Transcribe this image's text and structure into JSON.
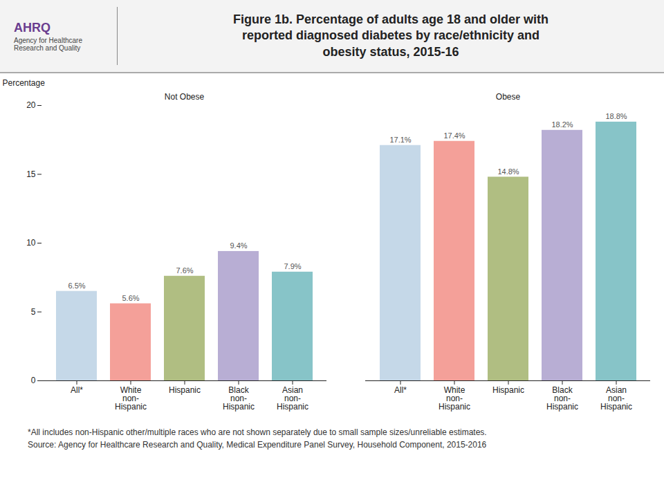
{
  "chart_data": {
    "type": "bar",
    "title": "Figure 1b. Percentage of adults age 18 and older with\nreported diagnosed diabetes by race/ethnicity and\nobesity status, 2015-16",
    "ylabel": "Percentage",
    "categories": [
      "All*",
      "White\nnon-\nHispanic",
      "Hispanic",
      "Black\nnon-\nHispanic",
      "Asian\nnon-\nHispanic"
    ],
    "groups": [
      {
        "name": "Not Obese",
        "values": [
          6.5,
          5.6,
          7.6,
          9.4,
          7.9
        ],
        "value_labels": [
          "6.5%",
          "5.6%",
          "7.6%",
          "9.4%",
          "7.9%"
        ]
      },
      {
        "name": "Obese",
        "values": [
          17.1,
          17.4,
          14.8,
          18.2,
          18.8
        ],
        "value_labels": [
          "17.1%",
          "17.4%",
          "14.8%",
          "18.2%",
          "18.8%"
        ]
      }
    ],
    "colors": [
      "#c5d8e8",
      "#f4a099",
      "#b0be82",
      "#b8aed4",
      "#87c4c8"
    ],
    "ylim": [
      0,
      20
    ],
    "yticks": [
      0,
      5,
      10,
      15,
      20
    ],
    "grid": false,
    "data_labels": true,
    "annotations": [
      "AHRQ",
      "Agency for Healthcare\nResearch and Quality"
    ],
    "footnotes": [
      "*All includes non-Hispanic other/multiple races who are not shown separately due to small sample sizes/unreliable estimates.",
      "Source: Agency for Healthcare Research and Quality, Medical Expenditure Panel Survey, Household Component, 2015-2016"
    ]
  }
}
